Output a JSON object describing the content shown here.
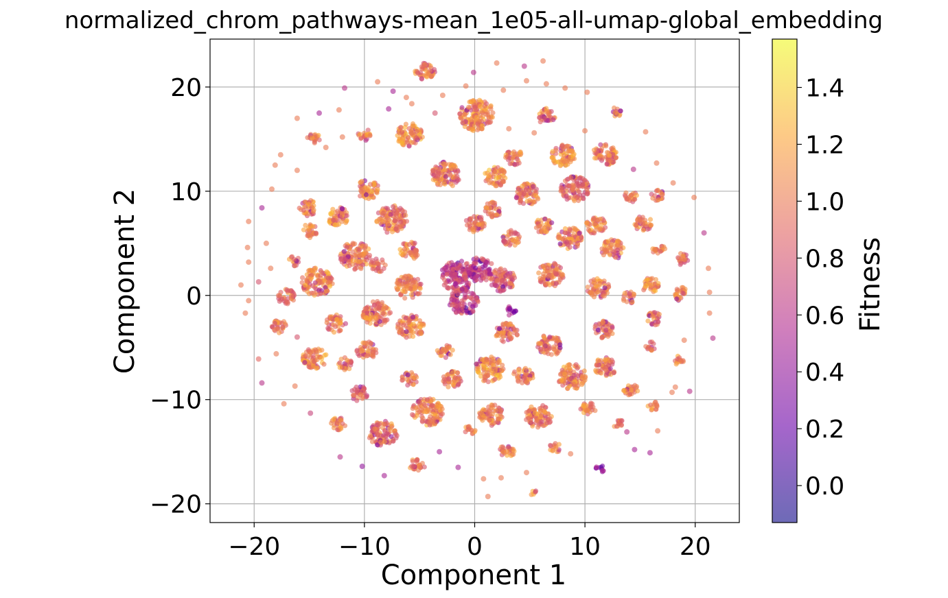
{
  "chart_data": {
    "type": "scatter",
    "title": "normalized_chrom_pathways-mean_1e05-all-umap-global_embedding",
    "xlabel": "Component 1",
    "ylabel": "Component 2",
    "xlim": [
      -24,
      24
    ],
    "ylim": [
      -21.8,
      24.6
    ],
    "xticks": [
      -20,
      -10,
      0,
      10,
      20
    ],
    "yticks": [
      -20,
      -10,
      0,
      10,
      20
    ],
    "xtick_labels": [
      "−20",
      "−10",
      "0",
      "10",
      "20"
    ],
    "ytick_labels": [
      "−20",
      "−10",
      "0",
      "10",
      "20"
    ],
    "grid": true,
    "colormap": "plasma",
    "point_alpha": 0.6,
    "colorbar": {
      "label": "Fitness",
      "range": [
        -0.13,
        1.57
      ],
      "ticks": [
        0.0,
        0.2,
        0.4,
        0.6,
        0.8,
        1.0,
        1.2,
        1.4
      ],
      "tick_labels": [
        "0.0",
        "0.2",
        "0.4",
        "0.6",
        "0.8",
        "1.0",
        "1.2",
        "1.4"
      ],
      "gradient": [
        "#0d0887",
        "#6a00a8",
        "#b12a90",
        "#e16462",
        "#fca636",
        "#f0f921"
      ]
    },
    "clusters": [
      {
        "x": 0.2,
        "y": 17.3,
        "r": 1.6,
        "fitness": 1.05
      },
      {
        "x": -4.5,
        "y": 21.5,
        "r": 0.9,
        "fitness": 1.0
      },
      {
        "x": -5.9,
        "y": 15.4,
        "r": 1.2,
        "fitness": 1.1
      },
      {
        "x": 6.5,
        "y": 17.2,
        "r": 0.8,
        "fitness": 1.0
      },
      {
        "x": 12.8,
        "y": 17.6,
        "r": 0.5,
        "fitness": 1.0
      },
      {
        "x": -9.7,
        "y": 10.2,
        "r": 1.0,
        "fitness": 1.05
      },
      {
        "x": -2.6,
        "y": 11.6,
        "r": 1.3,
        "fitness": 1.0
      },
      {
        "x": 1.9,
        "y": 11.4,
        "r": 1.0,
        "fitness": 1.1
      },
      {
        "x": 3.6,
        "y": 13.3,
        "r": 0.8,
        "fitness": 1.0
      },
      {
        "x": 8.0,
        "y": 13.4,
        "r": 1.1,
        "fitness": 1.05
      },
      {
        "x": 11.8,
        "y": 13.5,
        "r": 1.1,
        "fitness": 1.0
      },
      {
        "x": 4.8,
        "y": 9.7,
        "r": 1.1,
        "fitness": 1.0
      },
      {
        "x": 9.1,
        "y": 10.2,
        "r": 1.3,
        "fitness": 0.9
      },
      {
        "x": -7.5,
        "y": 7.3,
        "r": 1.4,
        "fitness": 1.0
      },
      {
        "x": -12.4,
        "y": 7.6,
        "r": 1.0,
        "fitness": 1.05
      },
      {
        "x": -15.1,
        "y": 8.4,
        "r": 0.8,
        "fitness": 1.0
      },
      {
        "x": 0.0,
        "y": 6.9,
        "r": 0.9,
        "fitness": 1.0
      },
      {
        "x": 1.6,
        "y": 8.2,
        "r": 0.8,
        "fitness": 1.05
      },
      {
        "x": 6.3,
        "y": 6.7,
        "r": 0.8,
        "fitness": 1.0
      },
      {
        "x": 11.0,
        "y": 6.7,
        "r": 0.9,
        "fitness": 1.05
      },
      {
        "x": 15.3,
        "y": 6.9,
        "r": 0.8,
        "fitness": 1.0
      },
      {
        "x": 14.2,
        "y": 9.5,
        "r": 0.6,
        "fitness": 1.0
      },
      {
        "x": 16.6,
        "y": 9.6,
        "r": 0.6,
        "fitness": 1.0
      },
      {
        "x": -10.8,
        "y": 3.8,
        "r": 1.4,
        "fitness": 1.0
      },
      {
        "x": -5.9,
        "y": 4.3,
        "r": 0.9,
        "fitness": 1.05
      },
      {
        "x": -15.0,
        "y": 6.2,
        "r": 0.7,
        "fitness": 1.0
      },
      {
        "x": 8.6,
        "y": 5.5,
        "r": 1.1,
        "fitness": 1.0
      },
      {
        "x": 12.5,
        "y": 4.4,
        "r": 1.0,
        "fitness": 1.05
      },
      {
        "x": 3.3,
        "y": 5.5,
        "r": 0.8,
        "fitness": 1.0
      },
      {
        "x": -1.5,
        "y": 1.8,
        "r": 1.6,
        "fitness": 0.7
      },
      {
        "x": 0.5,
        "y": 2.5,
        "r": 1.2,
        "fitness": 0.65
      },
      {
        "x": -1.0,
        "y": -0.6,
        "r": 1.3,
        "fitness": 0.7
      },
      {
        "x": 2.5,
        "y": 1.5,
        "r": 1.2,
        "fitness": 0.85
      },
      {
        "x": -14.3,
        "y": 1.3,
        "r": 1.4,
        "fitness": 1.05
      },
      {
        "x": -6.0,
        "y": 0.8,
        "r": 1.2,
        "fitness": 1.0
      },
      {
        "x": -8.8,
        "y": 2.9,
        "r": 0.7,
        "fitness": 1.0
      },
      {
        "x": 6.9,
        "y": 2.0,
        "r": 1.2,
        "fitness": 1.0
      },
      {
        "x": 11.2,
        "y": 0.7,
        "r": 1.0,
        "fitness": 1.0
      },
      {
        "x": 15.9,
        "y": 1.0,
        "r": 0.8,
        "fitness": 1.05
      },
      {
        "x": -17.1,
        "y": -0.1,
        "r": 0.8,
        "fitness": 1.0
      },
      {
        "x": -8.9,
        "y": -1.8,
        "r": 1.3,
        "fitness": 1.0
      },
      {
        "x": 18.8,
        "y": 0.1,
        "r": 0.7,
        "fitness": 1.0
      },
      {
        "x": 14.0,
        "y": -0.2,
        "r": 0.6,
        "fitness": 1.0
      },
      {
        "x": 3.3,
        "y": -1.5,
        "r": 0.5,
        "fitness": 0.35
      },
      {
        "x": -5.8,
        "y": -3.0,
        "r": 1.2,
        "fitness": 1.05
      },
      {
        "x": -12.6,
        "y": -2.7,
        "r": 0.9,
        "fitness": 1.0
      },
      {
        "x": 2.9,
        "y": -3.6,
        "r": 1.0,
        "fitness": 0.95
      },
      {
        "x": 6.8,
        "y": -4.8,
        "r": 1.1,
        "fitness": 1.0
      },
      {
        "x": 11.7,
        "y": -3.3,
        "r": 0.9,
        "fitness": 1.0
      },
      {
        "x": 16.3,
        "y": -2.2,
        "r": 0.7,
        "fitness": 1.0
      },
      {
        "x": -14.5,
        "y": -6.0,
        "r": 1.1,
        "fitness": 1.05
      },
      {
        "x": -9.8,
        "y": -5.3,
        "r": 0.9,
        "fitness": 1.0
      },
      {
        "x": -2.7,
        "y": -5.3,
        "r": 0.7,
        "fitness": 1.0
      },
      {
        "x": 1.3,
        "y": -7.1,
        "r": 1.3,
        "fitness": 1.1
      },
      {
        "x": 8.8,
        "y": -7.8,
        "r": 1.3,
        "fitness": 1.05
      },
      {
        "x": 4.4,
        "y": -7.7,
        "r": 0.9,
        "fitness": 1.0
      },
      {
        "x": 11.8,
        "y": -6.9,
        "r": 1.0,
        "fitness": 1.0
      },
      {
        "x": -11.7,
        "y": -6.5,
        "r": 0.7,
        "fitness": 1.0
      },
      {
        "x": -5.9,
        "y": -8.0,
        "r": 0.7,
        "fitness": 1.0
      },
      {
        "x": -2.1,
        "y": -8.1,
        "r": 0.9,
        "fitness": 1.0
      },
      {
        "x": -10.5,
        "y": -9.4,
        "r": 0.8,
        "fitness": 0.85
      },
      {
        "x": -4.3,
        "y": -11.2,
        "r": 1.4,
        "fitness": 1.05
      },
      {
        "x": 1.5,
        "y": -11.5,
        "r": 1.1,
        "fitness": 1.05
      },
      {
        "x": 5.8,
        "y": -11.6,
        "r": 1.2,
        "fitness": 1.0
      },
      {
        "x": -8.3,
        "y": -13.3,
        "r": 1.3,
        "fitness": 0.95
      },
      {
        "x": 10.3,
        "y": -10.8,
        "r": 0.7,
        "fitness": 1.0
      },
      {
        "x": 14.2,
        "y": -9.2,
        "r": 0.7,
        "fitness": 1.0
      },
      {
        "x": 16.1,
        "y": -10.6,
        "r": 0.5,
        "fitness": 1.0
      },
      {
        "x": -12.4,
        "y": -12.3,
        "r": 0.7,
        "fitness": 1.0
      },
      {
        "x": -0.4,
        "y": -12.9,
        "r": 0.5,
        "fitness": 1.0
      },
      {
        "x": 3.0,
        "y": -14.9,
        "r": 0.7,
        "fitness": 1.0
      },
      {
        "x": -5.2,
        "y": -16.3,
        "r": 0.7,
        "fitness": 1.05
      },
      {
        "x": 5.4,
        "y": -19.0,
        "r": 0.3,
        "fitness": 1.0
      },
      {
        "x": 11.4,
        "y": -16.6,
        "r": 0.4,
        "fitness": 0.5
      },
      {
        "x": -10.0,
        "y": 15.4,
        "r": 0.6,
        "fitness": 1.0
      },
      {
        "x": -14.6,
        "y": 15.0,
        "r": 0.6,
        "fitness": 1.0
      },
      {
        "x": 16.7,
        "y": 4.3,
        "r": 0.6,
        "fitness": 1.0
      },
      {
        "x": 16.0,
        "y": -4.9,
        "r": 0.5,
        "fitness": 1.0
      },
      {
        "x": 18.5,
        "y": -6.2,
        "r": 0.5,
        "fitness": 1.0
      },
      {
        "x": -17.7,
        "y": -3.0,
        "r": 0.7,
        "fitness": 1.0
      },
      {
        "x": -16.4,
        "y": 3.3,
        "r": 0.5,
        "fitness": 1.0
      },
      {
        "x": 18.8,
        "y": 3.5,
        "r": 0.6,
        "fitness": 1.0
      },
      {
        "x": 13.0,
        "y": -12.3,
        "r": 0.5,
        "fitness": 1.0
      },
      {
        "x": 7.3,
        "y": -14.6,
        "r": 0.5,
        "fitness": 1.0
      }
    ],
    "scattered_points": [
      {
        "x": -20.5,
        "y": 7.1,
        "fitness": 1.0
      },
      {
        "x": -20.6,
        "y": 4.6,
        "fitness": 1.0
      },
      {
        "x": -20.5,
        "y": 3.2,
        "fitness": 1.0
      },
      {
        "x": -21.2,
        "y": 1.0,
        "fitness": 1.0
      },
      {
        "x": -20.8,
        "y": -1.7,
        "fitness": 1.0
      },
      {
        "x": -19.6,
        "y": -6.1,
        "fitness": 0.9
      },
      {
        "x": -19.3,
        "y": -8.4,
        "fitness": 0.6
      },
      {
        "x": -17.3,
        "y": -10.4,
        "fitness": 1.0
      },
      {
        "x": -14.9,
        "y": -11.3,
        "fitness": 0.7
      },
      {
        "x": -12.2,
        "y": -15.5,
        "fitness": 0.6
      },
      {
        "x": -10.2,
        "y": -16.4,
        "fitness": 0.4
      },
      {
        "x": -8.2,
        "y": -17.3,
        "fitness": 0.5
      },
      {
        "x": -3.2,
        "y": -15.0,
        "fitness": 0.5
      },
      {
        "x": -1.5,
        "y": -16.5,
        "fitness": 0.5
      },
      {
        "x": 0.8,
        "y": -17.6,
        "fitness": 1.0
      },
      {
        "x": 1.2,
        "y": -19.3,
        "fitness": 1.0
      },
      {
        "x": 2.4,
        "y": -17.5,
        "fitness": 1.0
      },
      {
        "x": 4.7,
        "y": -17.0,
        "fitness": 1.0
      },
      {
        "x": 8.7,
        "y": -15.2,
        "fitness": 1.0
      },
      {
        "x": 13.8,
        "y": -13.1,
        "fitness": 0.6
      },
      {
        "x": 14.5,
        "y": -14.8,
        "fitness": 0.5
      },
      {
        "x": 16.6,
        "y": -13.0,
        "fitness": 1.0
      },
      {
        "x": 18.2,
        "y": -8.8,
        "fitness": 1.0
      },
      {
        "x": 19.0,
        "y": -4.3,
        "fitness": 1.0
      },
      {
        "x": 21.6,
        "y": -4.1,
        "fitness": 0.6
      },
      {
        "x": 21.3,
        "y": -1.7,
        "fitness": 1.0
      },
      {
        "x": 21.3,
        "y": 0.3,
        "fitness": 1.0
      },
      {
        "x": 21.2,
        "y": 2.6,
        "fitness": 1.0
      },
      {
        "x": 20.8,
        "y": 6.0,
        "fitness": 0.6
      },
      {
        "x": 19.9,
        "y": 9.4,
        "fitness": 1.0
      },
      {
        "x": 18.0,
        "y": 10.8,
        "fitness": 1.0
      },
      {
        "x": 16.5,
        "y": 12.7,
        "fitness": 1.0
      },
      {
        "x": 15.5,
        "y": 15.7,
        "fitness": 1.0
      },
      {
        "x": 14.4,
        "y": 12.1,
        "fitness": 0.6
      },
      {
        "x": 10.0,
        "y": 15.8,
        "fitness": 1.0
      },
      {
        "x": 10.2,
        "y": 19.5,
        "fitness": 1.0
      },
      {
        "x": 8.2,
        "y": 19.9,
        "fitness": 1.0
      },
      {
        "x": 6.5,
        "y": 20.3,
        "fitness": 1.0
      },
      {
        "x": 6.2,
        "y": 22.5,
        "fitness": 1.0
      },
      {
        "x": 4.7,
        "y": 20.6,
        "fitness": 1.0
      },
      {
        "x": 4.5,
        "y": 22.0,
        "fitness": 0.6
      },
      {
        "x": 2.6,
        "y": 19.7,
        "fitness": 1.0
      },
      {
        "x": 2.0,
        "y": 22.3,
        "fitness": 1.0
      },
      {
        "x": -0.1,
        "y": 21.4,
        "fitness": 0.6
      },
      {
        "x": -0.8,
        "y": 20.1,
        "fitness": 1.0
      },
      {
        "x": -2.9,
        "y": 19.2,
        "fitness": 1.0
      },
      {
        "x": -6.2,
        "y": 19.0,
        "fitness": 1.0
      },
      {
        "x": -7.4,
        "y": 19.6,
        "fitness": 0.5
      },
      {
        "x": -8.8,
        "y": 20.5,
        "fitness": 1.0
      },
      {
        "x": -11.8,
        "y": 19.9,
        "fitness": 0.6
      },
      {
        "x": -12.3,
        "y": 17.8,
        "fitness": 1.0
      },
      {
        "x": -14.1,
        "y": 17.5,
        "fitness": 0.5
      },
      {
        "x": -16.1,
        "y": 17.0,
        "fitness": 1.0
      },
      {
        "x": -17.6,
        "y": 13.5,
        "fitness": 1.0
      },
      {
        "x": -18.1,
        "y": 12.5,
        "fitness": 1.0
      },
      {
        "x": -19.3,
        "y": 8.4,
        "fitness": 0.5
      },
      {
        "x": -18.4,
        "y": 10.2,
        "fitness": 1.0
      },
      {
        "x": -16.1,
        "y": 12.0,
        "fitness": 1.0
      },
      {
        "x": -13.5,
        "y": 14.2,
        "fitness": 1.0
      },
      {
        "x": -12.0,
        "y": 15.2,
        "fitness": 1.0
      },
      {
        "x": -7.8,
        "y": 17.9,
        "fitness": 0.5
      },
      {
        "x": -5.7,
        "y": 18.4,
        "fitness": 1.0
      },
      {
        "x": -3.6,
        "y": 17.5,
        "fitness": 0.8
      },
      {
        "x": 3.1,
        "y": 16.0,
        "fitness": 1.0
      },
      {
        "x": 5.4,
        "y": 15.6,
        "fitness": 1.0
      },
      {
        "x": -18.9,
        "y": 5.0,
        "fitness": 1.0
      },
      {
        "x": -18.5,
        "y": 2.6,
        "fitness": 1.0
      },
      {
        "x": -19.6,
        "y": 1.3,
        "fitness": 0.8
      },
      {
        "x": -20.5,
        "y": -0.5,
        "fitness": 1.0
      },
      {
        "x": -18.0,
        "y": -5.6,
        "fitness": 1.0
      },
      {
        "x": -16.3,
        "y": -8.7,
        "fitness": 1.0
      },
      {
        "x": -16.1,
        "y": -4.0,
        "fitness": 0.8
      },
      {
        "x": 17.9,
        "y": -9.3,
        "fitness": 1.0
      },
      {
        "x": 19.5,
        "y": -9.2,
        "fitness": 0.6
      },
      {
        "x": 15.9,
        "y": -15.1,
        "fitness": 0.5
      },
      {
        "x": 11.6,
        "y": -16.8,
        "fitness": 0.5
      }
    ]
  }
}
